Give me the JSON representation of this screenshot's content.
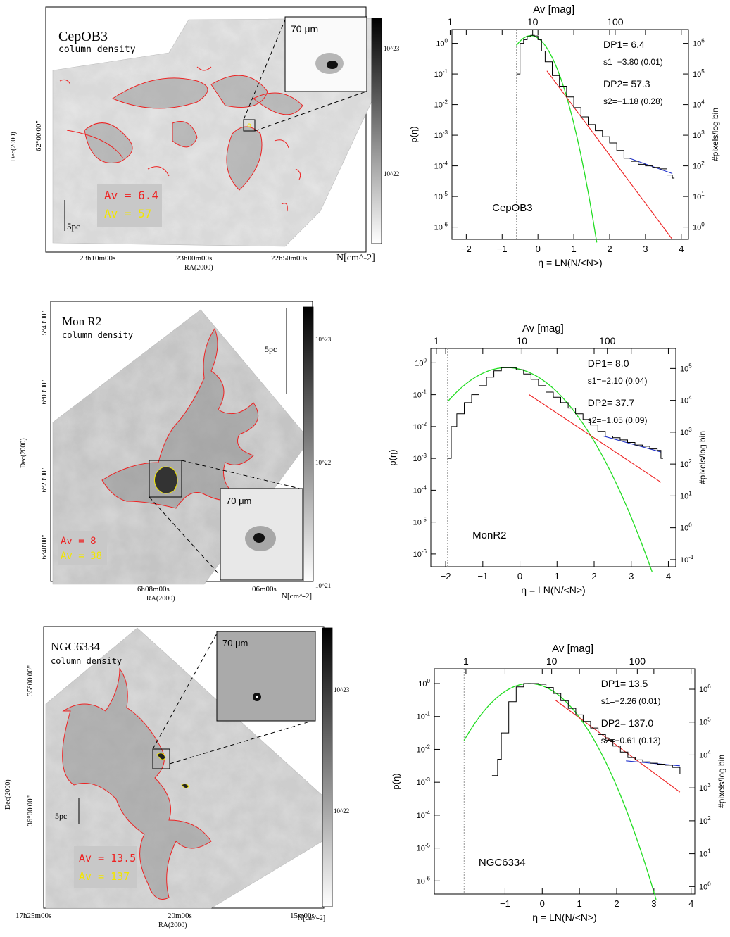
{
  "panels": [
    {
      "map": {
        "name": "CepOB3",
        "subtitle": "column density",
        "inset_label": "70 μm",
        "ra_ticks": [
          "23h10m00s",
          "23h00m00s",
          "22h50m00s"
        ],
        "ra_label": "RA(2000)",
        "dec_ticks": [
          "62°00'00\""
        ],
        "dec_label": "Dec(2000)",
        "scale_bar": "5pc",
        "colorbar_ticks": [
          "10^23",
          "10^22"
        ],
        "colorbar_unit": "N[cm^-2]",
        "contours": [
          "Av = 6.4",
          "Av = 57"
        ]
      },
      "pdf": {
        "top_axis_label": "Av [mag]",
        "top_ticks": [
          "1",
          "10",
          "100"
        ],
        "ylabel_left": "p(η)",
        "ylabel_right": "#pixels/log bin",
        "xlabel": "η = LN(N/<N>)",
        "x_ticks": [
          "−2",
          "−1",
          "0",
          "1",
          "2",
          "3",
          "4"
        ],
        "y_left_ticks": [
          "10^0",
          "10^-1",
          "10^-2",
          "10^-3",
          "10^-4",
          "10^-5",
          "10^-6"
        ],
        "y_right_ticks": [
          "10^6",
          "10^5",
          "10^4",
          "10^3",
          "10^2",
          "10^1",
          "10^0"
        ],
        "label": "CepOB3",
        "annotations": [
          "DP1= 6.4",
          "s1=−3.80 (0.01)",
          "DP2= 57.3",
          "s2=−1.18 (0.28)"
        ]
      }
    },
    {
      "map": {
        "name": "Mon R2",
        "subtitle": "column density",
        "inset_label": "70 μm",
        "ra_ticks": [
          "6h08m00s",
          "06m00s"
        ],
        "ra_label": "RA(2000)",
        "dec_ticks": [
          "−5°40'00\"",
          "−6°00'00\"",
          "−6°20'00\"",
          "−6°40'00\""
        ],
        "dec_label": "Dec(2000)",
        "scale_bar": "5pc",
        "colorbar_ticks": [
          "10^23",
          "10^22",
          "10^21"
        ],
        "colorbar_unit": "N[cm^-2]",
        "contours": [
          "Av = 8",
          "Av = 38"
        ]
      },
      "pdf": {
        "top_axis_label": "Av [mag]",
        "top_ticks": [
          "1",
          "10",
          "100"
        ],
        "ylabel_left": "p(η)",
        "ylabel_right": "#pixels/log bin",
        "xlabel": "η = LN(N/<N>)",
        "x_ticks": [
          "−2",
          "−1",
          "0",
          "1",
          "2",
          "3",
          "4"
        ],
        "y_left_ticks": [
          "10^0",
          "10^-1",
          "10^-2",
          "10^-3",
          "10^-4",
          "10^-5",
          "10^-6"
        ],
        "y_right_ticks": [
          "10^5",
          "10^4",
          "10^3",
          "10^2",
          "10^1",
          "10^0",
          "10^-1"
        ],
        "label": "MonR2",
        "annotations": [
          "DP1= 8.0",
          "s1=−2.10 (0.04)",
          "DP2= 37.7",
          "s2=−1.05 (0.09)"
        ]
      }
    },
    {
      "map": {
        "name": "NGC6334",
        "subtitle": "column density",
        "inset_label": "70 μm",
        "ra_ticks": [
          "17h25m00s",
          "20m00s",
          "15m00s"
        ],
        "ra_label": "RA(2000)",
        "dec_ticks": [
          "−35°00'00\"",
          "−36°00'00\""
        ],
        "dec_label": "Dec(2000)",
        "scale_bar": "5pc",
        "colorbar_ticks": [
          "10^23",
          "10^22"
        ],
        "colorbar_unit": "N[cm^-2]",
        "contours": [
          "Av = 13.5",
          "Av = 137"
        ]
      },
      "pdf": {
        "top_axis_label": "Av [mag]",
        "top_ticks": [
          "1",
          "10",
          "100"
        ],
        "ylabel_left": "p(η)",
        "ylabel_right": "#pixels/log bin",
        "xlabel": "η = LN(N/<N>)",
        "x_ticks": [
          "−1",
          "0",
          "1",
          "2",
          "3",
          "4"
        ],
        "y_left_ticks": [
          "10^0",
          "10^-1",
          "10^-2",
          "10^-3",
          "10^-4",
          "10^-5",
          "10^-6"
        ],
        "y_right_ticks": [
          "10^6",
          "10^5",
          "10^4",
          "10^3",
          "10^2",
          "10^1",
          "10^0"
        ],
        "label": "NGC6334",
        "annotations": [
          "DP1= 13.5",
          "s1=−2.26 (0.01)",
          "DP2= 137.0",
          "s2=−0.61 (0.13)"
        ]
      }
    }
  ],
  "colors": {
    "lognormal": "#22dd22",
    "powerlaw1": "#ee2222",
    "powerlaw2": "#2233cc",
    "histogram": "#000000",
    "contour_low": "#ee2222",
    "contour_high": "#f2e600"
  },
  "chart_data": [
    {
      "type": "line",
      "xlim": [
        -2.4,
        4.2
      ],
      "ylim_log10": [
        -6.4,
        0.45
      ],
      "top_axis": "Av (mag), log scale",
      "av_limit_eta": -0.6,
      "lognormal": {
        "peak_eta": -0.2,
        "peak_log10p": 0.25,
        "sigma": 0.33
      },
      "powerlaw1": {
        "log10_x": [
          0.25,
          3.75
        ],
        "log10_y": [
          -0.9,
          -6.4
        ]
      },
      "powerlaw2": {
        "log10_x": [
          2.55,
          3.75
        ],
        "log10_y": [
          -3.75,
          -4.25
        ]
      },
      "histogram": {
        "eta": [
          -0.6,
          -0.5,
          -0.4,
          -0.3,
          -0.2,
          -0.1,
          0.0,
          0.1,
          0.2,
          0.4,
          0.6,
          0.8,
          1.0,
          1.2,
          1.4,
          1.6,
          1.8,
          2.0,
          2.2,
          2.4,
          2.6,
          2.8,
          3.0,
          3.2,
          3.4,
          3.6,
          3.75
        ],
        "log10p": [
          -1.0,
          0.0,
          0.12,
          0.22,
          0.26,
          0.24,
          0.12,
          -0.25,
          -0.6,
          -1.05,
          -1.4,
          -1.75,
          -2.1,
          -2.4,
          -2.65,
          -2.85,
          -3.05,
          -3.25,
          -3.5,
          -3.75,
          -3.85,
          -3.95,
          -4.0,
          -4.05,
          -4.1,
          -4.3,
          -4.4
        ]
      }
    },
    {
      "type": "line",
      "xlim": [
        -2.4,
        4.2
      ],
      "ylim_log10": [
        -6.4,
        0.45
      ],
      "top_axis": "Av (mag), log scale",
      "av_limit_eta": -1.95,
      "lognormal": {
        "peak_eta": -0.35,
        "peak_log10p": -0.15,
        "sigma": 0.72
      },
      "powerlaw1": {
        "log10_x": [
          0.25,
          3.8
        ],
        "log10_y": [
          -1.0,
          -3.75
        ]
      },
      "powerlaw2": {
        "log10_x": [
          2.25,
          3.8
        ],
        "log10_y": [
          -2.3,
          -2.8
        ]
      },
      "histogram": {
        "eta": [
          -1.95,
          -1.85,
          -1.7,
          -1.5,
          -1.3,
          -1.1,
          -0.9,
          -0.7,
          -0.5,
          -0.3,
          -0.1,
          0.1,
          0.3,
          0.5,
          0.7,
          0.9,
          1.1,
          1.3,
          1.5,
          1.7,
          1.9,
          2.1,
          2.3,
          2.5,
          2.7,
          2.9,
          3.1,
          3.3,
          3.5,
          3.7,
          3.8
        ],
        "log10p": [
          -3.0,
          -2.0,
          -1.6,
          -1.25,
          -1.0,
          -0.72,
          -0.45,
          -0.25,
          -0.15,
          -0.15,
          -0.22,
          -0.35,
          -0.52,
          -0.72,
          -0.92,
          -1.08,
          -1.25,
          -1.42,
          -1.6,
          -1.78,
          -1.95,
          -2.15,
          -2.3,
          -2.35,
          -2.42,
          -2.5,
          -2.58,
          -2.62,
          -2.7,
          -2.75,
          -3.0
        ]
      }
    },
    {
      "type": "line",
      "xlim": [
        -2.9,
        4.1
      ],
      "ylim_log10": [
        -6.4,
        0.45
      ],
      "top_axis": "Av (mag), log scale",
      "av_limit_eta": -2.1,
      "lognormal": {
        "peak_eta": -0.35,
        "peak_log10p": 0.0,
        "sigma": 0.62
      },
      "powerlaw1": {
        "log10_x": [
          0.35,
          3.7
        ],
        "log10_y": [
          -0.5,
          -3.3
        ]
      },
      "powerlaw2": {
        "log10_x": [
          2.25,
          3.7
        ],
        "log10_y": [
          -2.35,
          -2.5
        ]
      },
      "histogram": {
        "eta": [
          -1.35,
          -1.2,
          -1.1,
          -0.9,
          -0.7,
          -0.5,
          -0.3,
          -0.1,
          0.1,
          0.3,
          0.5,
          0.7,
          0.9,
          1.1,
          1.3,
          1.5,
          1.7,
          1.9,
          2.1,
          2.3,
          2.5,
          2.7,
          2.9,
          3.1,
          3.3,
          3.5,
          3.7
        ],
        "log10p": [
          -2.8,
          -2.3,
          -1.5,
          -0.55,
          -0.1,
          0.0,
          0.0,
          -0.02,
          -0.12,
          -0.3,
          -0.52,
          -0.75,
          -0.95,
          -1.15,
          -1.35,
          -1.55,
          -1.72,
          -1.9,
          -2.08,
          -2.25,
          -2.32,
          -2.38,
          -2.42,
          -2.45,
          -2.48,
          -2.55,
          -2.75
        ]
      }
    }
  ]
}
